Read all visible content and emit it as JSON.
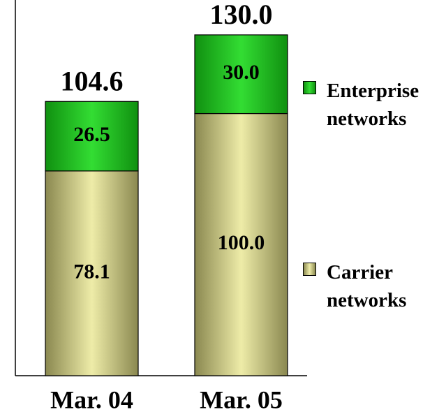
{
  "chart_data": {
    "type": "stacked_bar",
    "categories": [
      "Mar. 04",
      "Mar. 05"
    ],
    "series": [
      {
        "name": "Carrier networks",
        "color": "#e8e6a0",
        "values": [
          78.1,
          100.0
        ],
        "value_labels": [
          "78.1",
          "100.0"
        ]
      },
      {
        "name": "Enterprise networks",
        "color": "#22cc22",
        "values": [
          26.5,
          30.0
        ],
        "value_labels": [
          "26.5",
          "30.0"
        ]
      }
    ],
    "totals": [
      104.6,
      130.0
    ],
    "total_labels": [
      "104.6",
      "130.0"
    ],
    "ylim": [
      0,
      143.3
    ],
    "legend": "right"
  }
}
